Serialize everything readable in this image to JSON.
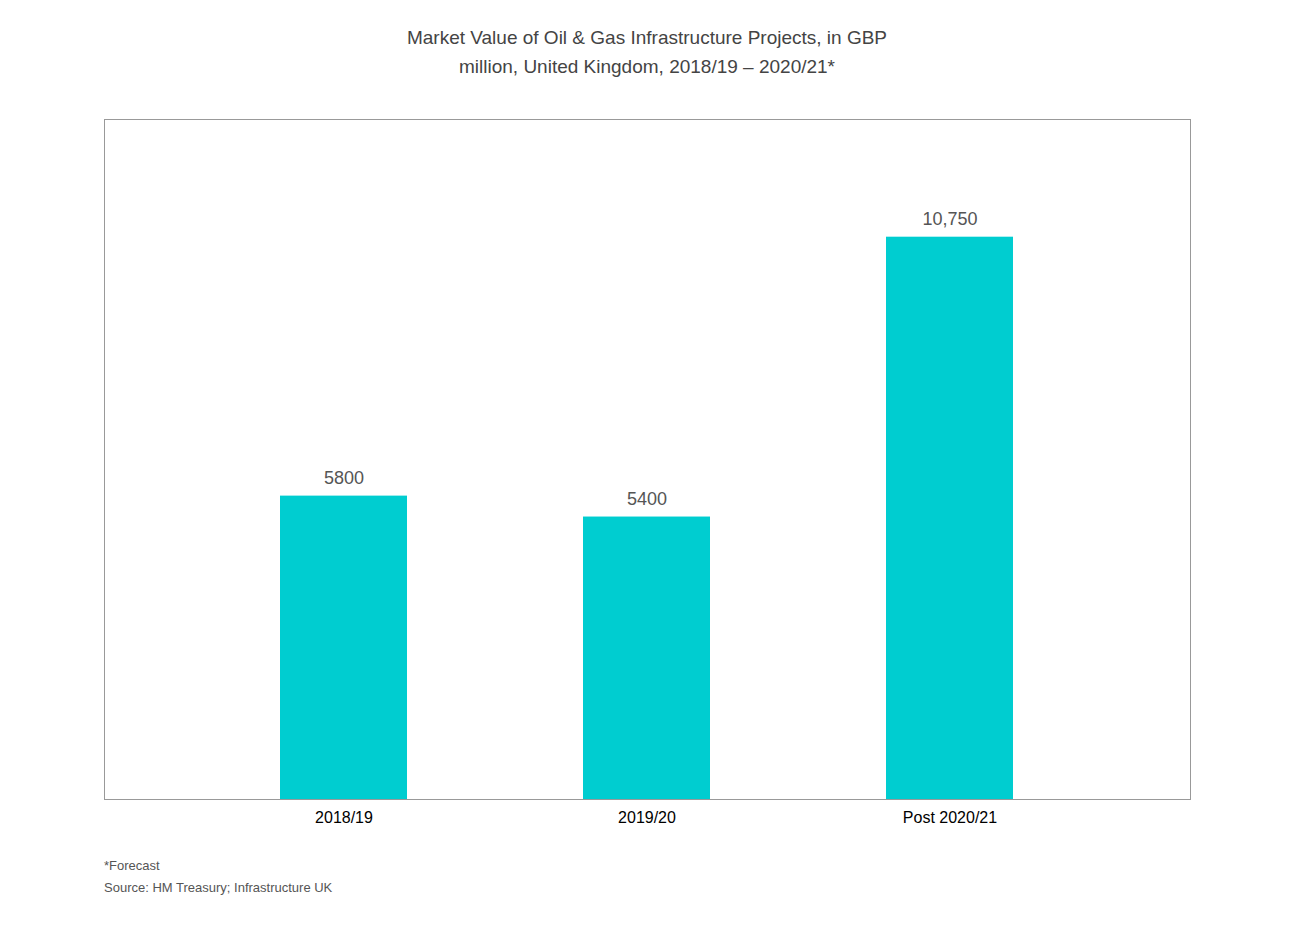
{
  "chart_data": {
    "type": "bar",
    "title": "Market Value of Oil & Gas Infrastructure Projects, in GBP\nmillion, United Kingdom, 2018/19 – 2020/21*",
    "categories": [
      "2018/19",
      "2019/20",
      "Post 2020/21"
    ],
    "values": [
      5800,
      5400,
      10750
    ],
    "value_labels": [
      "5800",
      "5400",
      "10,750"
    ],
    "data_labels": true,
    "color": "#00CDD0",
    "ylim": [
      0,
      13000
    ],
    "tick_labels": "x",
    "grid": false,
    "annotations": [
      "*Forecast",
      "Source: HM Treasury; Infrastructure UK"
    ]
  }
}
